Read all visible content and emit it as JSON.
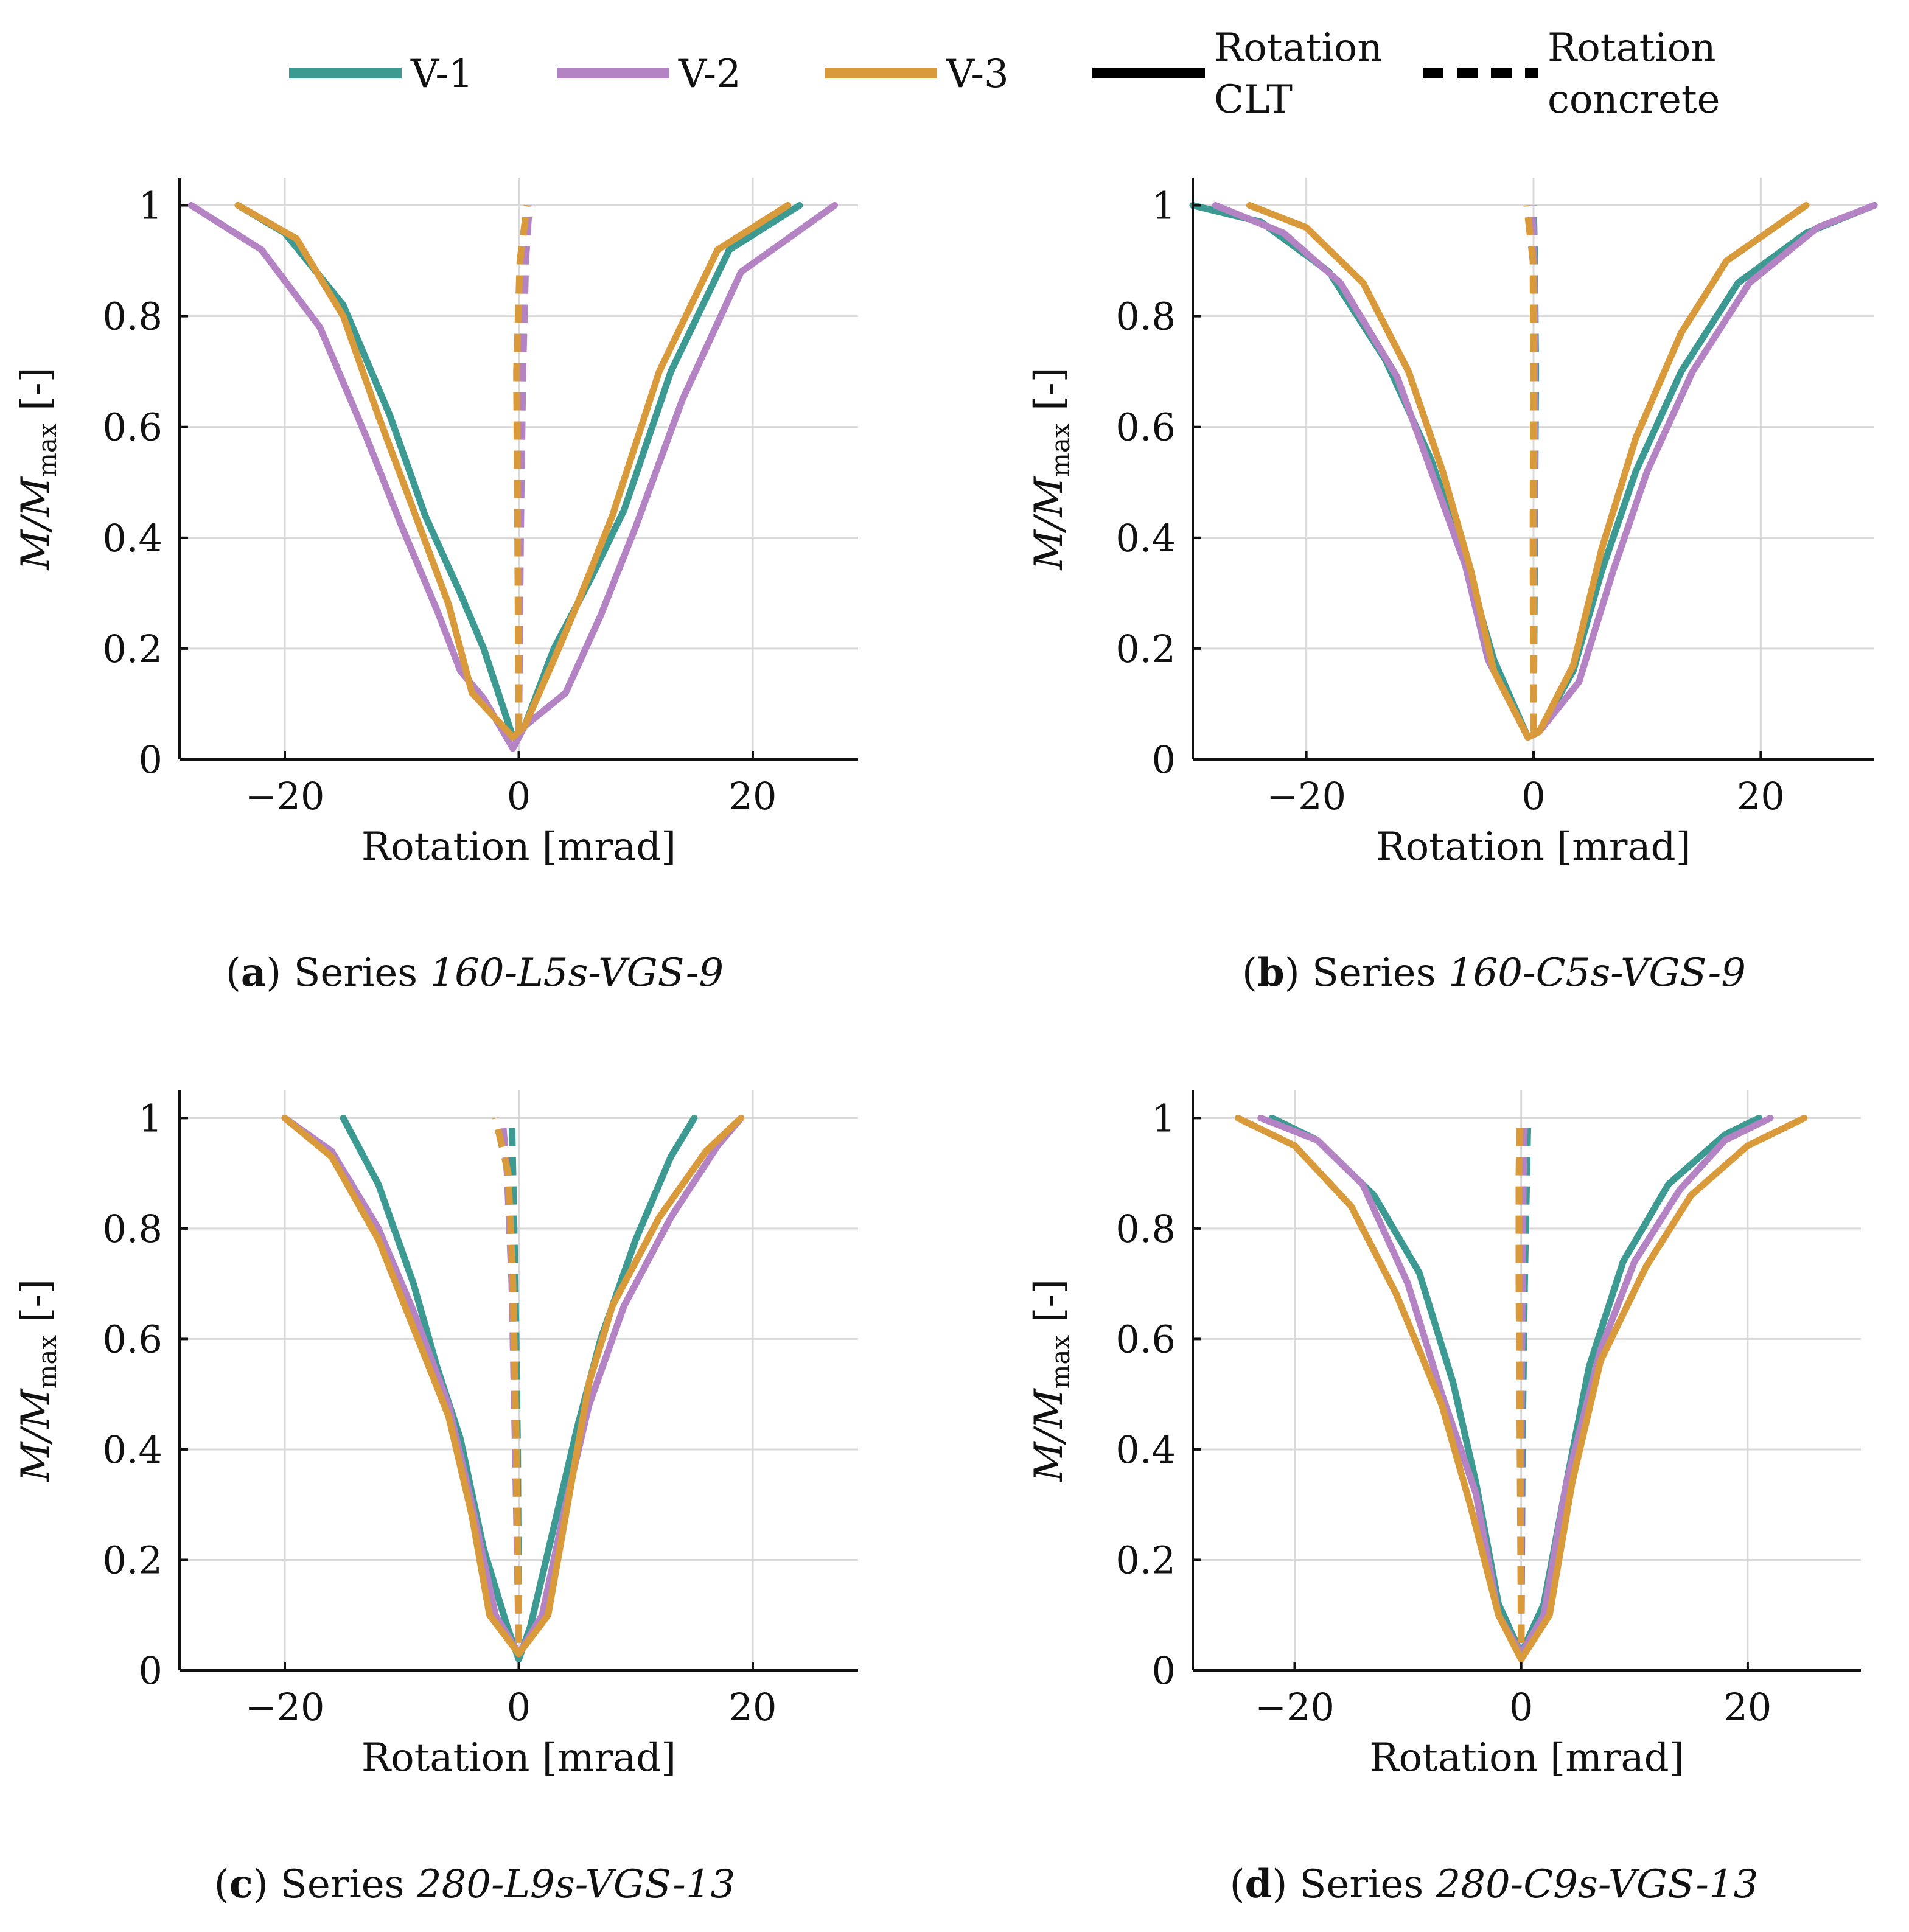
{
  "legend": {
    "entries": [
      {
        "label": "V-1",
        "color": "#3c9a92",
        "style": "solid"
      },
      {
        "label": "V-2",
        "color": "#b483c4",
        "style": "solid"
      },
      {
        "label": "V-3",
        "color": "#d89a3a",
        "style": "solid"
      },
      {
        "label_line1": "Rotation",
        "label_line2": "CLT",
        "color": "#000000",
        "style": "solid"
      },
      {
        "label_line1": "Rotation",
        "label_line2": "concrete",
        "color": "#000000",
        "style": "dashed"
      }
    ]
  },
  "chart_data": [
    {
      "type": "line",
      "panel_letter": "a",
      "caption_prefix": "Series",
      "series_title": "160-L5s-VGS-9",
      "xlabel": "Rotation [mrad]",
      "ylabel": "M/M",
      "ylabel_sub": "max",
      "ylabel_suffix": " [-]",
      "xlim": [
        -29,
        29
      ],
      "ylim": [
        0,
        1.05
      ],
      "xticks": [
        -20,
        0,
        20
      ],
      "xtick_labels": [
        "−20",
        "0",
        "20"
      ],
      "yticks": [
        0,
        0.2,
        0.4,
        0.6,
        0.8,
        1
      ],
      "ytick_labels": [
        "0",
        "0.2",
        "0.4",
        "0.6",
        "0.8",
        "1"
      ],
      "grid": true,
      "series": [
        {
          "name": "V-1",
          "kind": "CLT",
          "color": "#3c9a92",
          "dashed": false,
          "x": [
            -24,
            -20,
            -15,
            -11,
            -8,
            -5,
            -3,
            -0.5,
            0.5,
            3,
            6,
            9,
            13,
            18,
            24
          ],
          "y": [
            1,
            0.95,
            0.82,
            0.62,
            0.44,
            0.3,
            0.2,
            0.04,
            0.06,
            0.2,
            0.32,
            0.45,
            0.7,
            0.92,
            1
          ]
        },
        {
          "name": "V-2",
          "kind": "CLT",
          "color": "#b483c4",
          "dashed": false,
          "x": [
            -28,
            -22,
            -17,
            -13,
            -10,
            -7,
            -5,
            -3,
            -0.5,
            0.5,
            4,
            7,
            10,
            14,
            19,
            27
          ],
          "y": [
            1,
            0.92,
            0.78,
            0.58,
            0.42,
            0.27,
            0.16,
            0.11,
            0.02,
            0.06,
            0.12,
            0.26,
            0.42,
            0.65,
            0.88,
            1
          ]
        },
        {
          "name": "V-3",
          "kind": "CLT",
          "color": "#d89a3a",
          "dashed": false,
          "x": [
            -24,
            -19,
            -15,
            -12,
            -9,
            -6,
            -4,
            -0.5,
            0.5,
            3,
            5,
            8,
            12,
            17,
            23
          ],
          "y": [
            1,
            0.94,
            0.8,
            0.62,
            0.45,
            0.28,
            0.12,
            0.04,
            0.06,
            0.18,
            0.28,
            0.44,
            0.7,
            0.92,
            1
          ]
        },
        {
          "name": "V-1",
          "kind": "concrete",
          "color": "#3c9a92",
          "dashed": true,
          "x": [
            0,
            0.1,
            0.3,
            0.5,
            0.8
          ],
          "y": [
            0.05,
            0.4,
            0.7,
            0.9,
            1
          ]
        },
        {
          "name": "V-2",
          "kind": "concrete",
          "color": "#b483c4",
          "dashed": true,
          "x": [
            0,
            0.15,
            0.35,
            0.6,
            0.9
          ],
          "y": [
            0.05,
            0.4,
            0.7,
            0.9,
            1
          ]
        },
        {
          "name": "V-3",
          "kind": "concrete",
          "color": "#d89a3a",
          "dashed": true,
          "x": [
            0,
            -0.1,
            -0.2,
            0.1,
            0.7
          ],
          "y": [
            0.05,
            0.4,
            0.7,
            0.9,
            1
          ]
        }
      ]
    },
    {
      "type": "line",
      "panel_letter": "b",
      "caption_prefix": "Series",
      "series_title": "160-C5s-VGS-9",
      "xlabel": "Rotation [mrad]",
      "ylabel": "M/M",
      "ylabel_sub": "max",
      "ylabel_suffix": " [-]",
      "xlim": [
        -30,
        30
      ],
      "ylim": [
        0,
        1.05
      ],
      "xticks": [
        -20,
        0,
        20
      ],
      "xtick_labels": [
        "−20",
        "0",
        "20"
      ],
      "yticks": [
        0,
        0.2,
        0.4,
        0.6,
        0.8,
        1
      ],
      "ytick_labels": [
        "0",
        "0.2",
        "0.4",
        "0.6",
        "0.8",
        "1"
      ],
      "grid": true,
      "series": [
        {
          "name": "V-1",
          "kind": "CLT",
          "color": "#3c9a92",
          "dashed": false,
          "x": [
            -30,
            -24,
            -18,
            -13,
            -9,
            -6,
            -3.5,
            -0.5,
            0.5,
            3.5,
            6,
            9,
            13,
            18,
            24,
            30
          ],
          "y": [
            1,
            0.97,
            0.88,
            0.72,
            0.54,
            0.36,
            0.18,
            0.04,
            0.05,
            0.16,
            0.34,
            0.52,
            0.7,
            0.86,
            0.95,
            1
          ]
        },
        {
          "name": "V-2",
          "kind": "CLT",
          "color": "#b483c4",
          "dashed": false,
          "x": [
            -28,
            -22,
            -17,
            -12,
            -9,
            -6,
            -4,
            -0.5,
            0.5,
            4,
            7,
            10,
            14,
            19,
            25,
            30
          ],
          "y": [
            1,
            0.95,
            0.86,
            0.69,
            0.52,
            0.35,
            0.18,
            0.04,
            0.05,
            0.14,
            0.34,
            0.52,
            0.7,
            0.86,
            0.96,
            1
          ]
        },
        {
          "name": "V-3",
          "kind": "CLT",
          "color": "#d89a3a",
          "dashed": false,
          "x": [
            -25,
            -20,
            -15,
            -11,
            -8,
            -5.5,
            -3.5,
            -0.5,
            0.5,
            3.5,
            6,
            9,
            13,
            17,
            24
          ],
          "y": [
            1,
            0.96,
            0.86,
            0.7,
            0.52,
            0.34,
            0.16,
            0.04,
            0.05,
            0.17,
            0.38,
            0.58,
            0.77,
            0.9,
            1
          ]
        },
        {
          "name": "V-1",
          "kind": "concrete",
          "color": "#3c9a92",
          "dashed": true,
          "x": [
            0,
            0.1,
            0.2,
            0.1,
            0
          ],
          "y": [
            0.05,
            0.4,
            0.7,
            0.9,
            1
          ]
        },
        {
          "name": "V-2",
          "kind": "concrete",
          "color": "#b483c4",
          "dashed": true,
          "x": [
            0,
            0.05,
            0.1,
            0.05,
            -0.1
          ],
          "y": [
            0.05,
            0.4,
            0.7,
            0.9,
            1
          ]
        },
        {
          "name": "V-3",
          "kind": "concrete",
          "color": "#d89a3a",
          "dashed": true,
          "x": [
            0,
            -0.05,
            0,
            -0.05,
            -0.6
          ],
          "y": [
            0.05,
            0.4,
            0.7,
            0.9,
            1
          ]
        }
      ]
    },
    {
      "type": "line",
      "panel_letter": "c",
      "caption_prefix": "Series",
      "series_title": "280-L9s-VGS-13",
      "xlabel": "Rotation [mrad]",
      "ylabel": "M/M",
      "ylabel_sub": "max",
      "ylabel_suffix": " [-]",
      "xlim": [
        -29,
        29
      ],
      "ylim": [
        0,
        1.05
      ],
      "xticks": [
        -20,
        0,
        20
      ],
      "xtick_labels": [
        "−20",
        "0",
        "20"
      ],
      "yticks": [
        0,
        0.2,
        0.4,
        0.6,
        0.8,
        1
      ],
      "ytick_labels": [
        "0",
        "0.2",
        "0.4",
        "0.6",
        "0.8",
        "1"
      ],
      "grid": true,
      "series": [
        {
          "name": "V-1",
          "kind": "CLT",
          "color": "#3c9a92",
          "dashed": false,
          "x": [
            -15,
            -12,
            -9,
            -7,
            -5,
            -3,
            -1,
            0,
            1,
            3,
            5,
            7,
            10,
            13,
            15
          ],
          "y": [
            1,
            0.88,
            0.7,
            0.55,
            0.42,
            0.22,
            0.08,
            0.02,
            0.08,
            0.26,
            0.44,
            0.6,
            0.78,
            0.93,
            1
          ]
        },
        {
          "name": "V-2",
          "kind": "CLT",
          "color": "#b483c4",
          "dashed": false,
          "x": [
            -20,
            -16,
            -12,
            -9,
            -6,
            -4,
            -2,
            0,
            2,
            4,
            6,
            9,
            13,
            17,
            19
          ],
          "y": [
            1,
            0.94,
            0.8,
            0.65,
            0.48,
            0.3,
            0.1,
            0.03,
            0.1,
            0.3,
            0.48,
            0.66,
            0.82,
            0.95,
            1
          ]
        },
        {
          "name": "V-3",
          "kind": "CLT",
          "color": "#d89a3a",
          "dashed": false,
          "x": [
            -20,
            -16,
            -12,
            -9,
            -6,
            -4,
            -2.5,
            0,
            2.5,
            4,
            6,
            8,
            12,
            16,
            19
          ],
          "y": [
            1,
            0.93,
            0.78,
            0.62,
            0.46,
            0.28,
            0.1,
            0.03,
            0.1,
            0.28,
            0.52,
            0.66,
            0.82,
            0.94,
            1
          ]
        },
        {
          "name": "V-1",
          "kind": "concrete",
          "color": "#3c9a92",
          "dashed": true,
          "x": [
            0,
            -0.1,
            -0.3,
            -0.5,
            -0.6
          ],
          "y": [
            0.05,
            0.4,
            0.7,
            0.9,
            1
          ]
        },
        {
          "name": "V-2",
          "kind": "concrete",
          "color": "#b483c4",
          "dashed": true,
          "x": [
            0,
            -0.3,
            -0.6,
            -1,
            -1.4
          ],
          "y": [
            0.05,
            0.4,
            0.7,
            0.9,
            1
          ]
        },
        {
          "name": "V-3",
          "kind": "concrete",
          "color": "#d89a3a",
          "dashed": true,
          "x": [
            0,
            -0.2,
            -0.5,
            -0.9,
            -2
          ],
          "y": [
            0.05,
            0.4,
            0.7,
            0.9,
            1
          ]
        }
      ]
    },
    {
      "type": "line",
      "panel_letter": "d",
      "caption_prefix": "Series",
      "series_title": "280-C9s-VGS-13",
      "xlabel": "Rotation [mrad]",
      "ylabel": "M/M",
      "ylabel_sub": "max",
      "ylabel_suffix": " [-]",
      "xlim": [
        -29,
        30
      ],
      "ylim": [
        0,
        1.05
      ],
      "xticks": [
        -20,
        0,
        20
      ],
      "xtick_labels": [
        "−20",
        "0",
        "20"
      ],
      "yticks": [
        0,
        0.2,
        0.4,
        0.6,
        0.8,
        1
      ],
      "ytick_labels": [
        "0",
        "0.2",
        "0.4",
        "0.6",
        "0.8",
        "1"
      ],
      "grid": true,
      "series": [
        {
          "name": "V-1",
          "kind": "CLT",
          "color": "#3c9a92",
          "dashed": false,
          "x": [
            -22,
            -18,
            -13,
            -9,
            -6,
            -4,
            -2,
            0,
            2,
            4,
            6,
            9,
            13,
            18,
            21
          ],
          "y": [
            1,
            0.96,
            0.86,
            0.72,
            0.52,
            0.34,
            0.12,
            0.03,
            0.12,
            0.34,
            0.55,
            0.74,
            0.88,
            0.97,
            1
          ]
        },
        {
          "name": "V-2",
          "kind": "CLT",
          "color": "#b483c4",
          "dashed": false,
          "x": [
            -23,
            -18,
            -14,
            -10,
            -7,
            -4,
            -2,
            0,
            2,
            4,
            7,
            10,
            14,
            18,
            22
          ],
          "y": [
            1,
            0.96,
            0.88,
            0.7,
            0.5,
            0.32,
            0.1,
            0.03,
            0.1,
            0.34,
            0.58,
            0.74,
            0.87,
            0.96,
            1
          ]
        },
        {
          "name": "V-3",
          "kind": "CLT",
          "color": "#d89a3a",
          "dashed": false,
          "x": [
            -25,
            -20,
            -15,
            -11,
            -7,
            -4.5,
            -2,
            0,
            2.5,
            4.5,
            7,
            11,
            15,
            20,
            25
          ],
          "y": [
            1,
            0.95,
            0.84,
            0.68,
            0.48,
            0.3,
            0.1,
            0.02,
            0.1,
            0.34,
            0.56,
            0.73,
            0.86,
            0.95,
            1
          ]
        },
        {
          "name": "V-1",
          "kind": "concrete",
          "color": "#3c9a92",
          "dashed": true,
          "x": [
            0,
            0.1,
            0.3,
            0.5,
            0.6
          ],
          "y": [
            0.05,
            0.4,
            0.7,
            0.9,
            1
          ]
        },
        {
          "name": "V-2",
          "kind": "concrete",
          "color": "#b483c4",
          "dashed": true,
          "x": [
            0,
            0,
            0.1,
            0.2,
            0.3
          ],
          "y": [
            0.05,
            0.4,
            0.7,
            0.9,
            1
          ]
        },
        {
          "name": "V-3",
          "kind": "concrete",
          "color": "#d89a3a",
          "dashed": true,
          "x": [
            0,
            -0.1,
            -0.2,
            -0.2,
            -0.1
          ],
          "y": [
            0.05,
            0.4,
            0.7,
            0.9,
            1
          ]
        }
      ]
    }
  ]
}
